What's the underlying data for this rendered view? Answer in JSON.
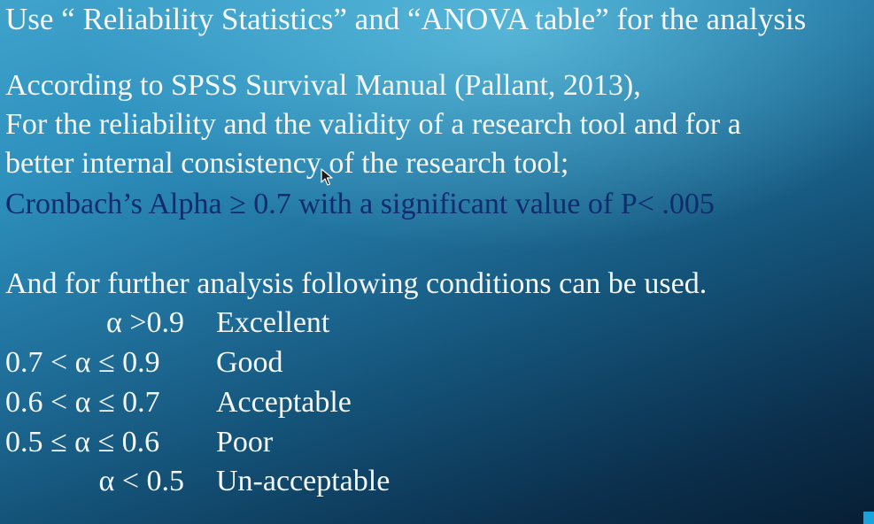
{
  "slide": {
    "title": "Use “ Reliability Statistics” and “ANOVA table” for the analysis",
    "lines": [
      "According to SPSS Survival Manual (Pallant, 2013),",
      "For the reliability and the validity of a research tool and for a",
      "better internal consistency of the research tool;",
      "Cronbach’s Alpha ≥ 0.7 with a significant value of P< .005",
      "And for further analysis following conditions can be used."
    ],
    "conditions": [
      {
        "range": "α >0.9",
        "label": "Excellent"
      },
      {
        "range": "0.7 < α ≤ 0.9",
        "label": "Good"
      },
      {
        "range": "0.6 < α ≤ 0.7",
        "label": "Acceptable"
      },
      {
        "range": "0.5 ≤ α ≤ 0.6",
        "label": "Poor"
      },
      {
        "range": "α < 0.5",
        "label": "Un-acceptable"
      }
    ]
  },
  "colors": {
    "text": "#f4f7fa",
    "highlight_text": "#0f2c6e",
    "background_top": "#3fa3cc",
    "background_bottom": "#071f35"
  },
  "icons": {
    "cursor": "mouse-pointer-icon"
  }
}
